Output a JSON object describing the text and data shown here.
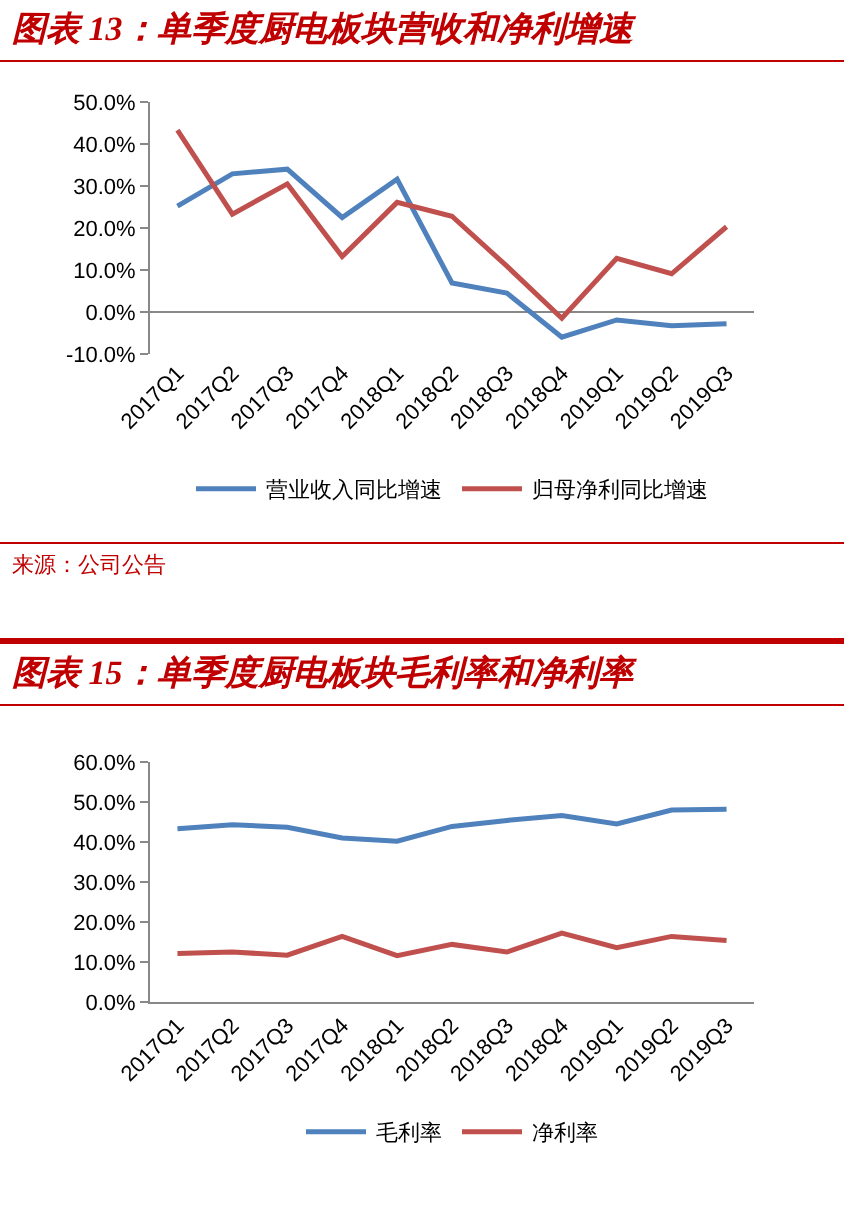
{
  "chart_data": [
    {
      "type": "line",
      "title": "图表 13：单季度厨电板块营收和净利增速",
      "categories": [
        "2017Q1",
        "2017Q2",
        "2017Q3",
        "2017Q4",
        "2018Q1",
        "2018Q2",
        "2018Q3",
        "2018Q4",
        "2019Q1",
        "2019Q2",
        "2019Q3"
      ],
      "series": [
        {
          "name": "营业收入同比增速",
          "color": "#4f81bd",
          "values": [
            25.2,
            32.9,
            34.0,
            22.5,
            31.6,
            6.9,
            4.5,
            -6.0,
            -1.9,
            -3.3,
            -2.8
          ]
        },
        {
          "name": "归母净利同比增速",
          "color": "#c0504d",
          "values": [
            43.3,
            23.3,
            30.5,
            13.2,
            26.1,
            22.8,
            10.9,
            -1.5,
            12.8,
            9.1,
            20.3
          ]
        }
      ],
      "ylim": [
        -10,
        50
      ],
      "yticks": [
        {
          "value": -10,
          "label": "-10.0%"
        },
        {
          "value": 0,
          "label": "0.0%"
        },
        {
          "value": 10,
          "label": "10.0%"
        },
        {
          "value": 20,
          "label": "20.0%"
        },
        {
          "value": 30,
          "label": "30.0%"
        },
        {
          "value": 40,
          "label": "40.0%"
        },
        {
          "value": 50,
          "label": "50.0%"
        }
      ],
      "grid": false,
      "legend": "bottom",
      "marker": "none",
      "line_style": "solid",
      "annotations": [
        "来源：公司公告"
      ]
    },
    {
      "type": "line",
      "title": "图表 15：单季度厨电板块毛利率和净利率",
      "categories": [
        "2017Q1",
        "2017Q2",
        "2017Q3",
        "2017Q4",
        "2018Q1",
        "2018Q2",
        "2018Q3",
        "2018Q4",
        "2019Q1",
        "2019Q2",
        "2019Q3"
      ],
      "series": [
        {
          "name": "毛利率",
          "color": "#4f81bd",
          "values": [
            43.3,
            44.3,
            43.7,
            41.0,
            40.2,
            43.9,
            45.4,
            46.6,
            44.5,
            48.0,
            48.2
          ]
        },
        {
          "name": "净利率",
          "color": "#c0504d",
          "values": [
            12.1,
            12.5,
            11.7,
            16.4,
            11.6,
            14.4,
            12.5,
            17.2,
            13.6,
            16.4,
            15.4
          ]
        }
      ],
      "ylim": [
        0,
        60
      ],
      "yticks": [
        {
          "value": 0,
          "label": "0.0%"
        },
        {
          "value": 10,
          "label": "10.0%"
        },
        {
          "value": 20,
          "label": "20.0%"
        },
        {
          "value": 30,
          "label": "30.0%"
        },
        {
          "value": 40,
          "label": "40.0%"
        },
        {
          "value": 50,
          "label": "50.0%"
        },
        {
          "value": 60,
          "label": "60.0%"
        }
      ],
      "grid": false,
      "legend": "bottom",
      "marker": "none",
      "line_style": "solid"
    }
  ]
}
